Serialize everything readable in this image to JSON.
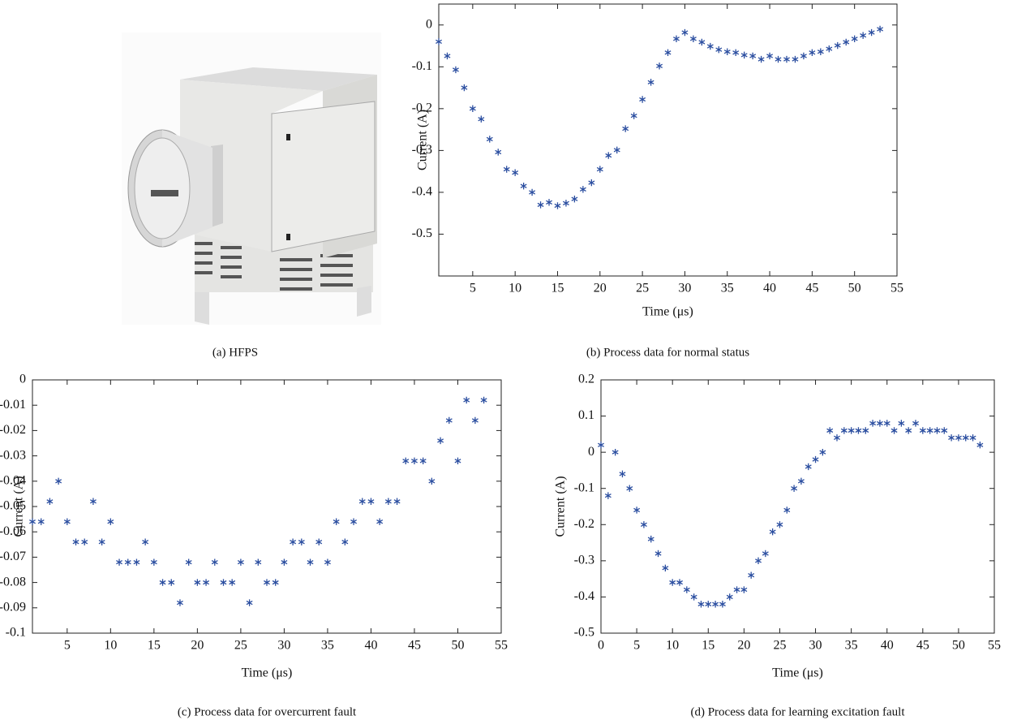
{
  "photo": {
    "caption": "(a)  HFPS"
  },
  "chart_data": [
    {
      "type": "scatter",
      "caption": "(b)  Process data for normal status",
      "xlabel": "Time (μs)",
      "ylabel": "Current (A)",
      "xlim": [
        1,
        55
      ],
      "xticks": [
        5,
        10,
        15,
        20,
        25,
        30,
        35,
        40,
        45,
        50,
        55
      ],
      "ylim": [
        -0.6,
        0.05
      ],
      "yticks": [
        -0.5,
        -0.4,
        -0.3,
        -0.2,
        -0.1,
        0
      ],
      "x": [
        1,
        2,
        3,
        4,
        5,
        6,
        7,
        8,
        9,
        10,
        11,
        12,
        13,
        14,
        15,
        16,
        17,
        18,
        19,
        20,
        21,
        22,
        23,
        24,
        25,
        26,
        27,
        28,
        29,
        30,
        31,
        32,
        33,
        34,
        35,
        36,
        37,
        38,
        39,
        40,
        41,
        42,
        43,
        44,
        45,
        46,
        47,
        48,
        49,
        50,
        51,
        52,
        53
      ],
      "series": [
        {
          "color": "#2b4ea0",
          "values": [
            -0.04,
            -0.074,
            -0.107,
            -0.15,
            -0.2,
            -0.225,
            -0.273,
            -0.304,
            -0.345,
            -0.353,
            -0.385,
            -0.4,
            -0.43,
            -0.424,
            -0.432,
            -0.426,
            -0.416,
            -0.393,
            -0.377,
            -0.345,
            -0.312,
            -0.299,
            -0.248,
            -0.217,
            -0.178,
            -0.137,
            -0.098,
            -0.066,
            -0.033,
            -0.018,
            -0.033,
            -0.041,
            -0.051,
            -0.059,
            -0.064,
            -0.066,
            -0.072,
            -0.074,
            -0.082,
            -0.074,
            -0.082,
            -0.082,
            -0.082,
            -0.074,
            -0.066,
            -0.064,
            -0.057,
            -0.049,
            -0.041,
            -0.033,
            -0.025,
            -0.018,
            -0.01
          ]
        }
      ]
    },
    {
      "type": "scatter",
      "caption": "(c)  Process data for overcurrent fault",
      "xlabel": "Time (μs)",
      "ylabel": "Current (A)",
      "xlim": [
        1,
        55
      ],
      "xticks": [
        5,
        10,
        15,
        20,
        25,
        30,
        35,
        40,
        45,
        50,
        55
      ],
      "ylim": [
        -0.1,
        0
      ],
      "yticks": [
        -0.1,
        -0.09,
        -0.08,
        -0.07,
        -0.06,
        -0.05,
        -0.04,
        -0.03,
        -0.02,
        -0.01,
        0
      ],
      "x": [
        1,
        2,
        3,
        4,
        5,
        6,
        7,
        8,
        9,
        10,
        11,
        12,
        13,
        14,
        15,
        16,
        17,
        18,
        19,
        20,
        21,
        22,
        23,
        24,
        25,
        26,
        27,
        28,
        29,
        30,
        31,
        32,
        33,
        34,
        35,
        36,
        37,
        38,
        39,
        40,
        41,
        42,
        43,
        44,
        45,
        46,
        47,
        48,
        49,
        50,
        51,
        52,
        53
      ],
      "series": [
        {
          "color": "#2b4ea0",
          "values": [
            -0.056,
            -0.056,
            -0.048,
            -0.04,
            -0.056,
            -0.064,
            -0.064,
            -0.048,
            -0.064,
            -0.056,
            -0.072,
            -0.072,
            -0.072,
            -0.064,
            -0.072,
            -0.08,
            -0.08,
            -0.088,
            -0.072,
            -0.08,
            -0.08,
            -0.072,
            -0.08,
            -0.08,
            -0.072,
            -0.088,
            -0.072,
            -0.08,
            -0.08,
            -0.072,
            -0.064,
            -0.064,
            -0.072,
            -0.064,
            -0.072,
            -0.056,
            -0.064,
            -0.056,
            -0.048,
            -0.048,
            -0.056,
            -0.048,
            -0.048,
            -0.032,
            -0.032,
            -0.032,
            -0.04,
            -0.024,
            -0.016,
            -0.032,
            -0.008,
            -0.016,
            -0.008
          ]
        }
      ]
    },
    {
      "type": "scatter",
      "caption": "(d)  Process data for learning excitation fault",
      "xlabel": "Time (μs)",
      "ylabel": "Current (A)",
      "xlim": [
        0,
        55
      ],
      "xticks": [
        0,
        5,
        10,
        15,
        20,
        25,
        30,
        35,
        40,
        45,
        50,
        55
      ],
      "ylim": [
        -0.5,
        0.2
      ],
      "yticks": [
        -0.5,
        -0.4,
        -0.3,
        -0.2,
        -0.1,
        0,
        0.1,
        0.2
      ],
      "x": [
        0,
        1,
        2,
        3,
        4,
        5,
        6,
        7,
        8,
        9,
        10,
        11,
        12,
        13,
        14,
        15,
        16,
        17,
        18,
        19,
        20,
        21,
        22,
        23,
        24,
        25,
        26,
        27,
        28,
        29,
        30,
        31,
        32,
        33,
        34,
        35,
        36,
        37,
        38,
        39,
        40,
        41,
        42,
        43,
        44,
        45,
        46,
        47,
        48,
        49,
        50,
        51,
        52,
        53
      ],
      "series": [
        {
          "color": "#2b4ea0",
          "values": [
            0.02,
            -0.12,
            0,
            -0.06,
            -0.1,
            -0.16,
            -0.2,
            -0.24,
            -0.28,
            -0.32,
            -0.36,
            -0.36,
            -0.38,
            -0.4,
            -0.42,
            -0.42,
            -0.42,
            -0.42,
            -0.4,
            -0.38,
            -0.38,
            -0.34,
            -0.3,
            -0.28,
            -0.22,
            -0.2,
            -0.16,
            -0.1,
            -0.08,
            -0.04,
            -0.02,
            0,
            0.06,
            0.04,
            0.06,
            0.06,
            0.06,
            0.06,
            0.08,
            0.08,
            0.08,
            0.06,
            0.08,
            0.06,
            0.08,
            0.06,
            0.06,
            0.06,
            0.06,
            0.04,
            0.04,
            0.04,
            0.04,
            0.02
          ]
        }
      ]
    }
  ]
}
